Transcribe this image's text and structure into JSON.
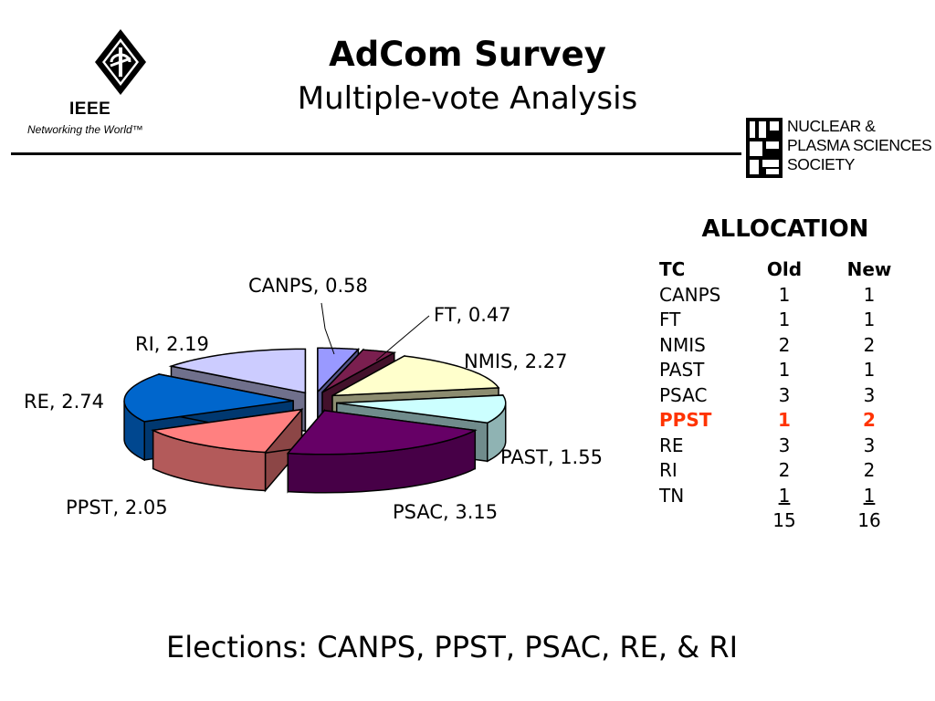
{
  "header": {
    "title": "AdCom Survey",
    "subtitle": "Multiple-vote Analysis",
    "ieee_logo_text": "IEEE",
    "ieee_tagline": "Networking the World™",
    "npss_lines": [
      "NUCLEAR &",
      "PLASMA SCIENCES",
      "SOCIETY"
    ]
  },
  "chart_data": {
    "type": "pie",
    "title": "",
    "categories": [
      "CANPS",
      "FT",
      "NMIS",
      "PAST",
      "PSAC",
      "PPST",
      "RE",
      "RI"
    ],
    "values": [
      0.58,
      0.47,
      2.27,
      1.55,
      3.15,
      2.05,
      2.74,
      2.19
    ],
    "labels": [
      "CANPS, 0.58",
      "FT, 0.47",
      "NMIS, 2.27",
      "PAST, 1.55",
      "PSAC, 3.15",
      "PPST, 2.05",
      "RE, 2.74",
      "RI, 2.19"
    ],
    "colors": [
      "#9999ff",
      "#7a1f4f",
      "#ffffcc",
      "#ccffff",
      "#660066",
      "#ff8080",
      "#0066cc",
      "#ccccff"
    ],
    "style": "3d-exploded",
    "legend": "none"
  },
  "allocation": {
    "title": "ALLOCATION",
    "headers": [
      "TC",
      "Old",
      "New"
    ],
    "rows": [
      [
        "CANPS",
        "1",
        "1"
      ],
      [
        "FT",
        "1",
        "1"
      ],
      [
        "NMIS",
        "2",
        "2"
      ],
      [
        "PAST",
        "1",
        "1"
      ],
      [
        "PSAC",
        "3",
        "3"
      ],
      [
        "PPST",
        "1",
        "2"
      ],
      [
        "RE",
        "3",
        "3"
      ],
      [
        "RI",
        "2",
        "2"
      ],
      [
        "TN",
        "1",
        "1"
      ]
    ],
    "totals": [
      "",
      "15",
      "16"
    ],
    "highlight_color": "#ff3300"
  },
  "footer": {
    "text": "Elections: CANPS, PPST, PSAC, RE, & RI"
  }
}
